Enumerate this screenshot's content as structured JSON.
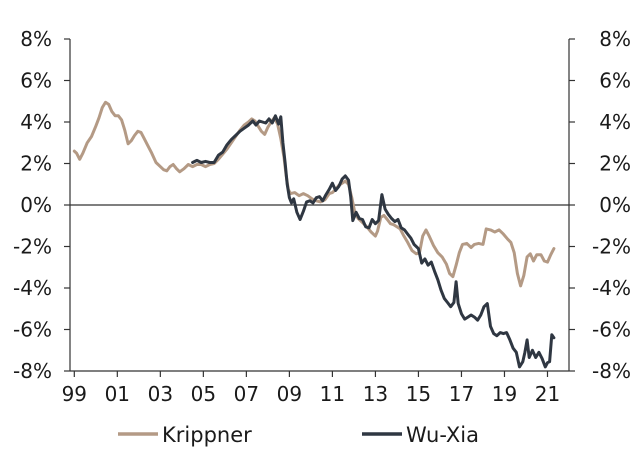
{
  "chart_data": {
    "type": "line",
    "title": "",
    "xlabel": "",
    "ylabel": "",
    "grid": false,
    "legend_position": "bottom",
    "xlim": [
      1999,
      2022
    ],
    "ylim": [
      -8,
      8
    ],
    "x_ticks": [
      {
        "value": 1999,
        "label": "99"
      },
      {
        "value": 2001,
        "label": "01"
      },
      {
        "value": 2003,
        "label": "03"
      },
      {
        "value": 2005,
        "label": "05"
      },
      {
        "value": 2007,
        "label": "07"
      },
      {
        "value": 2009,
        "label": "09"
      },
      {
        "value": 2011,
        "label": "11"
      },
      {
        "value": 2013,
        "label": "13"
      },
      {
        "value": 2015,
        "label": "15"
      },
      {
        "value": 2017,
        "label": "17"
      },
      {
        "value": 2019,
        "label": "19"
      },
      {
        "value": 2021,
        "label": "21"
      }
    ],
    "y_ticks": [
      {
        "value": 8,
        "label": "8%"
      },
      {
        "value": 6,
        "label": "6%"
      },
      {
        "value": 4,
        "label": "4%"
      },
      {
        "value": 2,
        "label": "2%"
      },
      {
        "value": 0,
        "label": "0%"
      },
      {
        "value": -2,
        "label": "-2%"
      },
      {
        "value": -4,
        "label": "-4%"
      },
      {
        "value": -6,
        "label": "-6%"
      },
      {
        "value": -8,
        "label": "-8%"
      }
    ],
    "series": [
      {
        "name": "Krippner",
        "color": "#b49a85",
        "points": [
          [
            1999.0,
            2.6
          ],
          [
            1999.1,
            2.5
          ],
          [
            1999.25,
            2.2
          ],
          [
            1999.4,
            2.5
          ],
          [
            1999.6,
            3.0
          ],
          [
            1999.8,
            3.3
          ],
          [
            2000.0,
            3.8
          ],
          [
            2000.15,
            4.2
          ],
          [
            2000.3,
            4.7
          ],
          [
            2000.45,
            4.95
          ],
          [
            2000.6,
            4.85
          ],
          [
            2000.75,
            4.5
          ],
          [
            2000.9,
            4.3
          ],
          [
            2001.05,
            4.3
          ],
          [
            2001.2,
            4.1
          ],
          [
            2001.35,
            3.6
          ],
          [
            2001.5,
            2.95
          ],
          [
            2001.65,
            3.1
          ],
          [
            2001.8,
            3.35
          ],
          [
            2001.95,
            3.55
          ],
          [
            2002.1,
            3.5
          ],
          [
            2002.25,
            3.2
          ],
          [
            2002.4,
            2.9
          ],
          [
            2002.6,
            2.5
          ],
          [
            2002.8,
            2.05
          ],
          [
            2003.0,
            1.85
          ],
          [
            2003.15,
            1.7
          ],
          [
            2003.3,
            1.65
          ],
          [
            2003.45,
            1.85
          ],
          [
            2003.6,
            1.95
          ],
          [
            2003.75,
            1.75
          ],
          [
            2003.9,
            1.6
          ],
          [
            2004.1,
            1.75
          ],
          [
            2004.3,
            1.95
          ],
          [
            2004.5,
            1.85
          ],
          [
            2004.7,
            1.95
          ],
          [
            2004.9,
            1.95
          ],
          [
            2005.1,
            1.85
          ],
          [
            2005.3,
            1.95
          ],
          [
            2005.5,
            2.0
          ],
          [
            2005.7,
            2.2
          ],
          [
            2005.9,
            2.45
          ],
          [
            2006.1,
            2.7
          ],
          [
            2006.3,
            3.0
          ],
          [
            2006.5,
            3.3
          ],
          [
            2006.7,
            3.6
          ],
          [
            2006.9,
            3.85
          ],
          [
            2007.1,
            4.0
          ],
          [
            2007.25,
            4.15
          ],
          [
            2007.4,
            4.05
          ],
          [
            2007.55,
            3.8
          ],
          [
            2007.7,
            3.55
          ],
          [
            2007.85,
            3.4
          ],
          [
            2008.0,
            3.75
          ],
          [
            2008.15,
            4.0
          ],
          [
            2008.3,
            4.2
          ],
          [
            2008.45,
            3.9
          ],
          [
            2008.6,
            3.2
          ],
          [
            2008.75,
            2.3
          ],
          [
            2008.85,
            1.4
          ],
          [
            2008.95,
            0.75
          ],
          [
            2009.05,
            0.55
          ],
          [
            2009.25,
            0.6
          ],
          [
            2009.45,
            0.45
          ],
          [
            2009.65,
            0.55
          ],
          [
            2009.85,
            0.45
          ],
          [
            2010.05,
            0.3
          ],
          [
            2010.25,
            0.2
          ],
          [
            2010.45,
            0.15
          ],
          [
            2010.65,
            0.25
          ],
          [
            2010.85,
            0.55
          ],
          [
            2011.0,
            0.6
          ],
          [
            2011.15,
            0.75
          ],
          [
            2011.3,
            0.95
          ],
          [
            2011.45,
            1.05
          ],
          [
            2011.6,
            1.15
          ],
          [
            2011.75,
            1.0
          ],
          [
            2011.9,
            0.35
          ],
          [
            2012.05,
            -0.4
          ],
          [
            2012.2,
            -0.65
          ],
          [
            2012.4,
            -0.85
          ],
          [
            2012.6,
            -1.05
          ],
          [
            2012.8,
            -1.3
          ],
          [
            2013.0,
            -1.5
          ],
          [
            2013.1,
            -1.25
          ],
          [
            2013.25,
            -0.6
          ],
          [
            2013.4,
            -0.5
          ],
          [
            2013.55,
            -0.7
          ],
          [
            2013.7,
            -0.9
          ],
          [
            2013.85,
            -0.95
          ],
          [
            2014.0,
            -1.05
          ],
          [
            2014.15,
            -1.15
          ],
          [
            2014.3,
            -1.45
          ],
          [
            2014.5,
            -1.8
          ],
          [
            2014.7,
            -2.2
          ],
          [
            2014.9,
            -2.35
          ],
          [
            2015.05,
            -2.3
          ],
          [
            2015.2,
            -1.5
          ],
          [
            2015.35,
            -1.2
          ],
          [
            2015.5,
            -1.5
          ],
          [
            2015.7,
            -1.95
          ],
          [
            2015.9,
            -2.3
          ],
          [
            2016.1,
            -2.5
          ],
          [
            2016.3,
            -2.85
          ],
          [
            2016.45,
            -3.3
          ],
          [
            2016.6,
            -3.45
          ],
          [
            2016.75,
            -2.9
          ],
          [
            2016.9,
            -2.3
          ],
          [
            2017.05,
            -1.9
          ],
          [
            2017.25,
            -1.85
          ],
          [
            2017.45,
            -2.05
          ],
          [
            2017.6,
            -1.9
          ],
          [
            2017.8,
            -1.85
          ],
          [
            2018.0,
            -1.9
          ],
          [
            2018.15,
            -1.15
          ],
          [
            2018.35,
            -1.2
          ],
          [
            2018.55,
            -1.3
          ],
          [
            2018.75,
            -1.2
          ],
          [
            2018.95,
            -1.4
          ],
          [
            2019.15,
            -1.65
          ],
          [
            2019.3,
            -1.8
          ],
          [
            2019.45,
            -2.3
          ],
          [
            2019.6,
            -3.3
          ],
          [
            2019.75,
            -3.9
          ],
          [
            2019.9,
            -3.4
          ],
          [
            2020.05,
            -2.5
          ],
          [
            2020.2,
            -2.35
          ],
          [
            2020.35,
            -2.7
          ],
          [
            2020.5,
            -2.4
          ],
          [
            2020.7,
            -2.4
          ],
          [
            2020.85,
            -2.7
          ],
          [
            2021.0,
            -2.75
          ],
          [
            2021.15,
            -2.4
          ],
          [
            2021.3,
            -2.1
          ]
        ]
      },
      {
        "name": "Wu-Xia",
        "color": "#2f3742",
        "points": [
          [
            2004.5,
            2.05
          ],
          [
            2004.7,
            2.15
          ],
          [
            2004.9,
            2.05
          ],
          [
            2005.1,
            2.1
          ],
          [
            2005.3,
            2.05
          ],
          [
            2005.5,
            2.05
          ],
          [
            2005.7,
            2.4
          ],
          [
            2005.9,
            2.55
          ],
          [
            2006.1,
            2.9
          ],
          [
            2006.3,
            3.15
          ],
          [
            2006.5,
            3.35
          ],
          [
            2006.7,
            3.55
          ],
          [
            2006.9,
            3.7
          ],
          [
            2007.1,
            3.85
          ],
          [
            2007.3,
            4.05
          ],
          [
            2007.45,
            3.85
          ],
          [
            2007.6,
            4.05
          ],
          [
            2007.75,
            4.0
          ],
          [
            2007.9,
            3.95
          ],
          [
            2008.05,
            4.15
          ],
          [
            2008.2,
            3.95
          ],
          [
            2008.35,
            4.3
          ],
          [
            2008.5,
            3.9
          ],
          [
            2008.6,
            4.25
          ],
          [
            2008.7,
            3.0
          ],
          [
            2008.8,
            2.05
          ],
          [
            2008.9,
            1.0
          ],
          [
            2009.0,
            0.35
          ],
          [
            2009.1,
            0.1
          ],
          [
            2009.2,
            0.3
          ],
          [
            2009.35,
            -0.35
          ],
          [
            2009.5,
            -0.7
          ],
          [
            2009.65,
            -0.3
          ],
          [
            2009.8,
            0.15
          ],
          [
            2009.95,
            0.2
          ],
          [
            2010.1,
            0.1
          ],
          [
            2010.25,
            0.35
          ],
          [
            2010.4,
            0.4
          ],
          [
            2010.55,
            0.2
          ],
          [
            2010.7,
            0.5
          ],
          [
            2010.85,
            0.75
          ],
          [
            2011.0,
            1.05
          ],
          [
            2011.15,
            0.7
          ],
          [
            2011.3,
            0.9
          ],
          [
            2011.45,
            1.25
          ],
          [
            2011.6,
            1.4
          ],
          [
            2011.75,
            1.2
          ],
          [
            2011.85,
            0.4
          ],
          [
            2011.95,
            -0.75
          ],
          [
            2012.1,
            -0.35
          ],
          [
            2012.25,
            -0.65
          ],
          [
            2012.4,
            -0.7
          ],
          [
            2012.55,
            -1.05
          ],
          [
            2012.7,
            -1.1
          ],
          [
            2012.85,
            -0.7
          ],
          [
            2013.0,
            -0.9
          ],
          [
            2013.15,
            -0.75
          ],
          [
            2013.3,
            0.5
          ],
          [
            2013.45,
            -0.2
          ],
          [
            2013.6,
            -0.45
          ],
          [
            2013.75,
            -0.65
          ],
          [
            2013.9,
            -0.8
          ],
          [
            2014.05,
            -0.7
          ],
          [
            2014.2,
            -1.1
          ],
          [
            2014.35,
            -1.2
          ],
          [
            2014.5,
            -1.4
          ],
          [
            2014.65,
            -1.6
          ],
          [
            2014.8,
            -1.9
          ],
          [
            2015.0,
            -2.1
          ],
          [
            2015.15,
            -2.8
          ],
          [
            2015.3,
            -2.6
          ],
          [
            2015.45,
            -2.9
          ],
          [
            2015.6,
            -2.75
          ],
          [
            2015.75,
            -3.2
          ],
          [
            2015.9,
            -3.6
          ],
          [
            2016.05,
            -4.1
          ],
          [
            2016.2,
            -4.5
          ],
          [
            2016.35,
            -4.7
          ],
          [
            2016.5,
            -4.9
          ],
          [
            2016.65,
            -4.7
          ],
          [
            2016.75,
            -3.7
          ],
          [
            2016.85,
            -4.75
          ],
          [
            2017.0,
            -5.25
          ],
          [
            2017.15,
            -5.5
          ],
          [
            2017.3,
            -5.4
          ],
          [
            2017.45,
            -5.3
          ],
          [
            2017.6,
            -5.4
          ],
          [
            2017.75,
            -5.55
          ],
          [
            2017.9,
            -5.3
          ],
          [
            2018.05,
            -4.9
          ],
          [
            2018.2,
            -4.75
          ],
          [
            2018.35,
            -5.85
          ],
          [
            2018.5,
            -6.2
          ],
          [
            2018.65,
            -6.3
          ],
          [
            2018.8,
            -6.15
          ],
          [
            2018.95,
            -6.2
          ],
          [
            2019.1,
            -6.15
          ],
          [
            2019.25,
            -6.5
          ],
          [
            2019.4,
            -6.9
          ],
          [
            2019.55,
            -7.1
          ],
          [
            2019.7,
            -7.8
          ],
          [
            2019.85,
            -7.55
          ],
          [
            2019.95,
            -7.1
          ],
          [
            2020.05,
            -6.5
          ],
          [
            2020.15,
            -7.35
          ],
          [
            2020.3,
            -7.0
          ],
          [
            2020.45,
            -7.35
          ],
          [
            2020.6,
            -7.1
          ],
          [
            2020.75,
            -7.4
          ],
          [
            2020.9,
            -7.8
          ],
          [
            2021.0,
            -7.6
          ],
          [
            2021.1,
            -7.55
          ],
          [
            2021.2,
            -6.25
          ],
          [
            2021.3,
            -6.4
          ]
        ]
      }
    ]
  }
}
